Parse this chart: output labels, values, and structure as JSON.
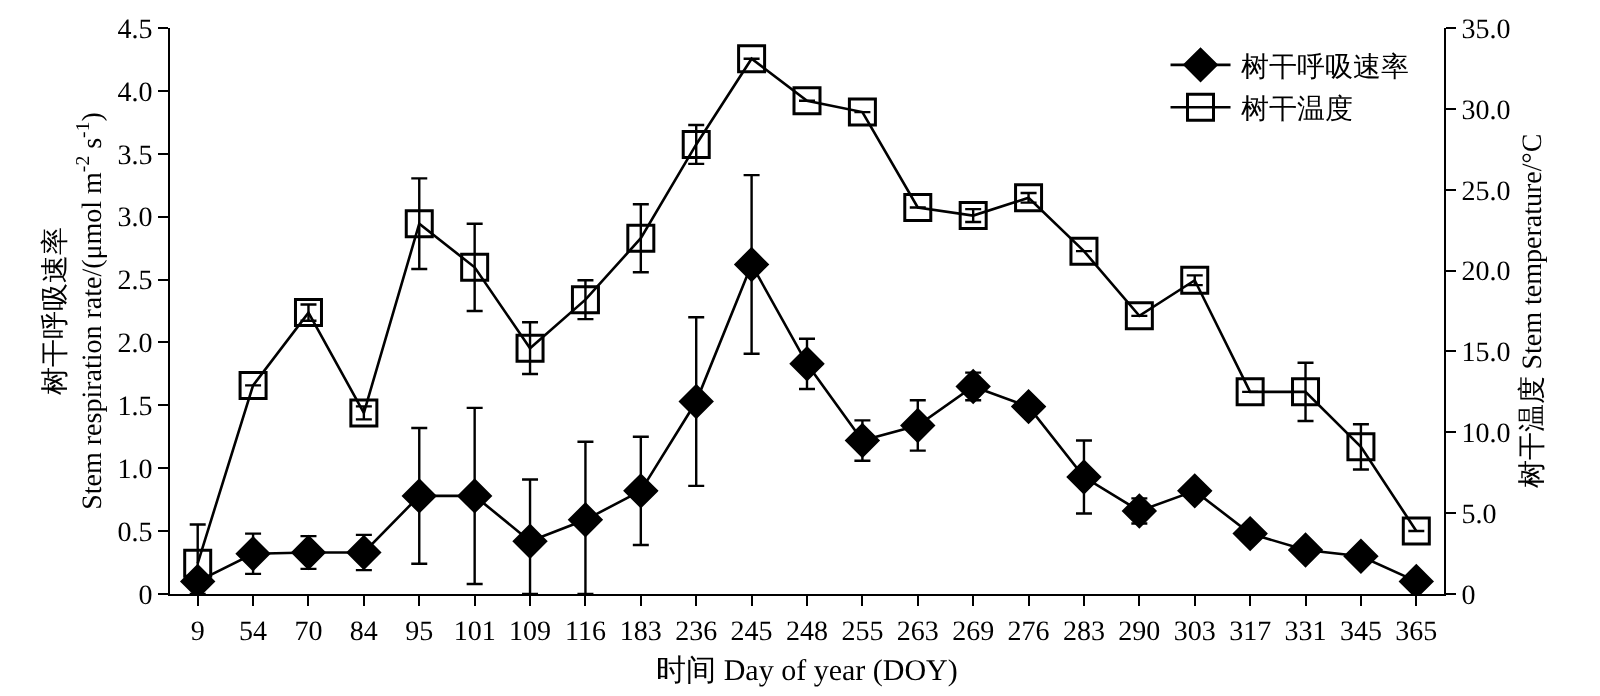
{
  "chart_data": {
    "type": "line",
    "xlabel": "时间 Day of year (DOY)",
    "ylabel": "树干呼吸速率\nStem respiration rate/(μmol m$^{-2}$ s$^{-1}$)",
    "y2label": "树干温度 Stem temperature/°C",
    "categories": [
      "9",
      "54",
      "70",
      "84",
      "95",
      "101",
      "109",
      "116",
      "183",
      "236",
      "245",
      "248",
      "255",
      "263",
      "269",
      "276",
      "283",
      "290",
      "303",
      "317",
      "331",
      "345",
      "365"
    ],
    "series": [
      {
        "name": "树干呼吸速率",
        "color": "#000000",
        "marker": "diamond",
        "values": [
          0.1,
          0.32,
          0.33,
          0.33,
          0.78,
          0.78,
          0.42,
          0.59,
          0.82,
          1.53,
          2.62,
          1.83,
          1.22,
          1.34,
          1.65,
          1.49,
          0.93,
          0.66,
          0.82,
          0.48,
          0.35,
          0.3,
          0.1
        ],
        "errors": [
          null,
          0.16,
          0.13,
          0.14,
          0.54,
          0.7,
          [
            0,
            0.91
          ],
          [
            0,
            1.21
          ],
          0.43,
          0.67,
          0.71,
          0.2,
          0.16,
          0.2,
          0.11,
          null,
          0.29,
          0.1,
          null,
          null,
          null,
          null,
          null
        ]
      },
      {
        "name": "树干温度",
        "color": "#000000",
        "marker": "square",
        "axis": "y2",
        "values": [
          1.9,
          12.9,
          17.4,
          11.2,
          22.9,
          20.2,
          15.2,
          18.2,
          22.0,
          27.8,
          33.1,
          30.5,
          29.8,
          23.9,
          23.4,
          24.5,
          21.2,
          17.2,
          19.4,
          12.5,
          12.5,
          9.1,
          3.9
        ],
        "errors": [
          [
            0,
            4.3
          ],
          null,
          0.5,
          0.4,
          2.8,
          2.7,
          1.6,
          1.2,
          2.1,
          1.2,
          null,
          null,
          null,
          null,
          0.4,
          0.3,
          null,
          null,
          0.3,
          null,
          1.8,
          1.4,
          null
        ]
      }
    ],
    "ylim": [
      0,
      4.5
    ],
    "yticks": [
      0,
      {
        "value": 0.5,
        "label": "0.5"
      },
      {
        "value": 1,
        "label": "1.0"
      },
      {
        "value": 1.5,
        "label": "1.5"
      },
      {
        "value": 2,
        "label": "2.0"
      },
      {
        "value": 2.5,
        "label": "2.5"
      },
      {
        "value": 3,
        "label": "3.0"
      },
      {
        "value": 3.5,
        "label": "3.5"
      },
      {
        "value": 4,
        "label": "4.0"
      },
      {
        "value": 4.5,
        "label": "4.5"
      }
    ],
    "y2lim": [
      0,
      35
    ],
    "y2ticks": [
      0,
      {
        "value": 5,
        "label": "5.0"
      },
      {
        "value": 10,
        "label": "10.0"
      },
      {
        "value": 15,
        "label": "15.0"
      },
      {
        "value": 20,
        "label": "20.0"
      },
      {
        "value": 25,
        "label": "25.0"
      },
      {
        "value": 30,
        "label": "30.0"
      },
      {
        "value": 35,
        "label": "35.0"
      }
    ],
    "legend": "top right",
    "line_style": "solid"
  }
}
